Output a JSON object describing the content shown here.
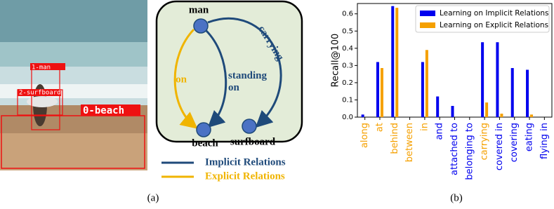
{
  "figure_a": {
    "photo_labels": [
      "1-man",
      "2-surfboard",
      "0-beach"
    ],
    "nodes": [
      "man",
      "beach",
      "surfboard"
    ],
    "edges": [
      "carrying",
      "standing on",
      "on"
    ],
    "legend": [
      "Implicit Relations",
      "Explicit Relations"
    ],
    "caption": "(a)"
  },
  "chart_data": {
    "type": "bar",
    "caption": "(b)",
    "y_label": "Recall@100",
    "categories": [
      "along",
      "at",
      "behind",
      "between",
      "in",
      "and",
      "attached to",
      "belonging to",
      "carrying",
      "covered in",
      "covering",
      "eating",
      "flying in"
    ],
    "category_colors": [
      "#f5a000",
      "#f5a000",
      "#f5a000",
      "#f5a000",
      "#f5a000",
      "#0000ee",
      "#0000ee",
      "#0000ee",
      "#f5a000",
      "#0000ee",
      "#0000ee",
      "#0000ee",
      "#0000ee"
    ],
    "series": [
      {
        "name": "Learning on Implicit Relations",
        "color": "#0000ee",
        "values": [
          0.015,
          0.32,
          0.645,
          0,
          0.32,
          0.12,
          0.065,
          0,
          0.435,
          0.435,
          0.285,
          0.275,
          0
        ]
      },
      {
        "name": "Learning on Explicit Relations",
        "color": "#f5a000",
        "values": [
          0,
          0.285,
          0.635,
          0,
          0.39,
          0,
          0,
          0,
          0.085,
          0.02,
          0,
          0.015,
          0
        ]
      }
    ],
    "ylim": [
      0,
      0.66
    ],
    "yticks": [
      {
        "value": 0,
        "label": "0.0"
      },
      0.1,
      0.2,
      0.3,
      0.4,
      0.5,
      0.6
    ],
    "legend_position": "upper right"
  }
}
